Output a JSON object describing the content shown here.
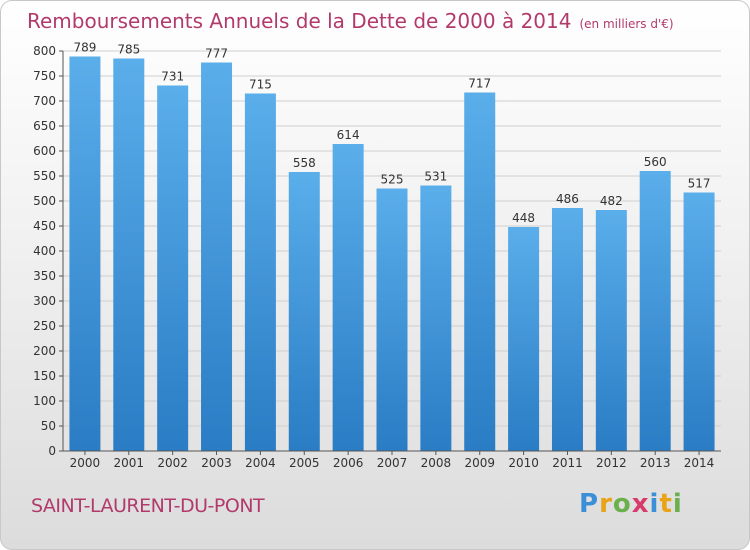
{
  "header": {
    "title": "Remboursements Annuels de la Dette de 2000 à 2014",
    "unit": "(en milliers d'€)"
  },
  "footer": {
    "commune": "SAINT-LAURENT-DU-PONT",
    "logo_letters": [
      "P",
      "r",
      "o",
      "x",
      "i",
      "t",
      "i"
    ],
    "logo_colors": [
      "#3b8fd6",
      "#e8a317",
      "#6ab04c",
      "#d63b6b",
      "#3b8fd6",
      "#e8a317",
      "#6ab04c"
    ]
  },
  "colors": {
    "bar_top": "#5aaeea",
    "bar_bottom": "#2a7cc4",
    "title": "#b23a6b",
    "grid": "#cfcfcf"
  },
  "chart_data": {
    "type": "bar",
    "title": "Remboursements Annuels de la Dette de 2000 à 2014",
    "subtitle": "(en milliers d'€)",
    "categories": [
      "2000",
      "2001",
      "2002",
      "2003",
      "2004",
      "2005",
      "2006",
      "2007",
      "2008",
      "2009",
      "2010",
      "2011",
      "2012",
      "2013",
      "2014"
    ],
    "values": [
      789,
      785,
      731,
      777,
      715,
      558,
      614,
      525,
      531,
      717,
      448,
      486,
      482,
      560,
      517
    ],
    "ylim": [
      0,
      800
    ],
    "yticks": [
      0,
      50,
      100,
      150,
      200,
      250,
      300,
      350,
      400,
      450,
      500,
      550,
      600,
      650,
      700,
      750,
      800
    ],
    "grid": true,
    "xlabel": "",
    "ylabel": ""
  }
}
